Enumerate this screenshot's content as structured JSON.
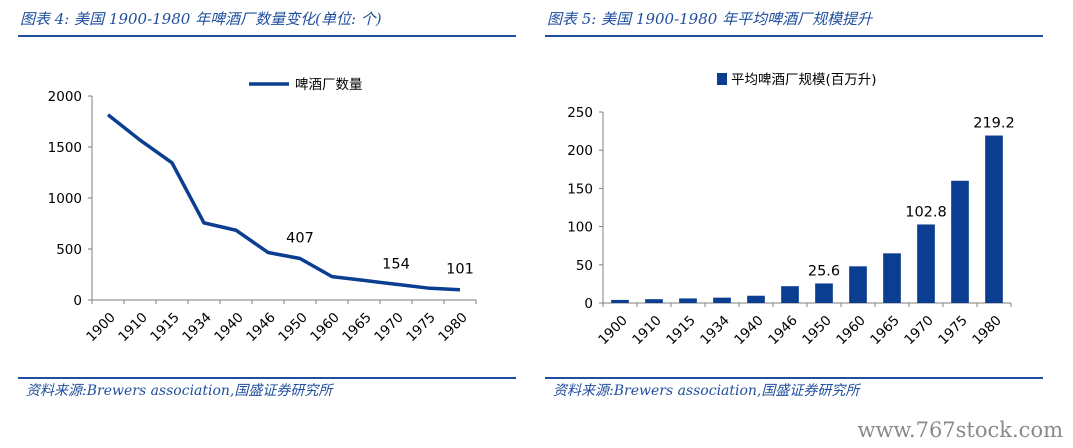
{
  "left_panel": {
    "title": "图表 4:  美国 1900-1980 年啤酒厂数量变化(单位:  个)",
    "source": "资料来源:Brewers association,国盛证券研究所",
    "chart_data": {
      "type": "line",
      "categories": [
        "1900",
        "1910",
        "1915",
        "1934",
        "1940",
        "1946",
        "1950",
        "1960",
        "1965",
        "1970",
        "1975",
        "1980"
      ],
      "series": [
        {
          "name": "啤酒厂数量",
          "values": [
            1816,
            1568,
            1345,
            756,
            684,
            466,
            407,
            229,
            192,
            154,
            117,
            101
          ],
          "data_labels": [
            null,
            null,
            null,
            null,
            null,
            null,
            "407",
            null,
            null,
            "154",
            null,
            "101"
          ]
        }
      ],
      "yticks": [
        "0",
        "500",
        "1000",
        "1500",
        "2000"
      ],
      "ylim": [
        0,
        2000
      ],
      "legend": "top-center",
      "color": "#0b3d91"
    }
  },
  "right_panel": {
    "title": "图表 5:  美国 1900-1980 年平均啤酒厂规模提升",
    "source": "资料来源:Brewers association,国盛证券研究所",
    "chart_data": {
      "type": "bar",
      "categories": [
        "1900",
        "1910",
        "1915",
        "1934",
        "1940",
        "1946",
        "1950",
        "1960",
        "1965",
        "1970",
        "1975",
        "1980"
      ],
      "series": [
        {
          "name": "平均啤酒厂规模(百万升)",
          "values": [
            4,
            5,
            6,
            7,
            9.5,
            22,
            25.6,
            48,
            65,
            102.8,
            160,
            219.2
          ],
          "data_labels": [
            null,
            null,
            null,
            null,
            null,
            null,
            "25.6",
            null,
            null,
            "102.8",
            null,
            "219.2"
          ]
        }
      ],
      "yticks": [
        "0",
        "50",
        "100",
        "150",
        "200",
        "250"
      ],
      "ylim": [
        0,
        250
      ],
      "legend": "top-center",
      "color": "#0b3d91"
    }
  },
  "watermark": "www.767stock.com"
}
